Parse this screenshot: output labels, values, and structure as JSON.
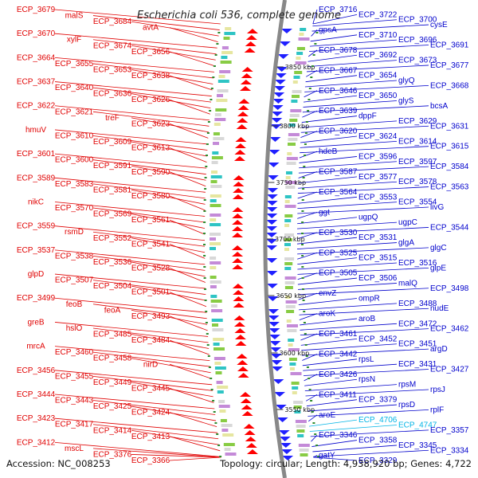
{
  "title": "Escherichia coli 536, complete genome",
  "accession": "Accession: NC_008253",
  "topology": "Topology: circular; Length: 4,938,920 bp; Genes: 4,722",
  "colors": {
    "left": "#e00000",
    "right": "#0000cc",
    "rna": "#00b4e6",
    "backbone": "#888888",
    "tick": "#2e8b2e"
  },
  "ticks": [
    "3850 kbp",
    "3800 kbp",
    "3750 kbp",
    "3700 kbp",
    "3650 kbp",
    "3600 kbp",
    "3550 kbp"
  ],
  "left_labels": [
    "ECP_3679",
    "malS",
    "ECP_3684",
    "avtA",
    "ECP_3670",
    "xylF",
    "ECP_3674",
    "ECP_3656",
    "ECP_3664",
    "ECP_3655",
    "ECP_3653",
    "ECP_3638",
    "ECP_3637",
    "ECP_3640",
    "ECP_3636",
    "ECP_3626",
    "ECP_3622",
    "ECP_3621",
    "treF",
    "ECP_3623",
    "hmuV",
    "ECP_3610",
    "ECP_3609",
    "ECP_3613",
    "ECP_3601",
    "ECP_3600",
    "ECP_3591",
    "ECP_3590",
    "ECP_3589",
    "ECP_3583",
    "ECP_3581",
    "ECP_3580",
    "nikC",
    "ECP_3570",
    "ECP_3569",
    "ECP_3561",
    "ECP_3559",
    "rsmD",
    "ECP_3552",
    "ECP_3541",
    "ECP_3537",
    "ECP_3538",
    "ECP_3536",
    "ECP_3528",
    "glpD",
    "ECP_3507",
    "ECP_3504",
    "ECP_3501",
    "ECP_3499",
    "feoB",
    "feoA",
    "ECP_3493",
    "greB",
    "hslO",
    "ECP_3485",
    "ECP_3484",
    "mrcA",
    "ECP_3460",
    "ECP_3458",
    "nirD",
    "ECP_3456",
    "ECP_3455",
    "ECP_3449",
    "ECP_3445",
    "ECP_3444",
    "ECP_3443",
    "ECP_3425",
    "ECP_3424",
    "ECP_3423",
    "ECP_3417",
    "ECP_3414",
    "ECP_3413",
    "ECP_3412",
    "mscL",
    "ECP_3376",
    "ECP_3366"
  ],
  "right_labels": [
    "ECP_3716",
    "ECP_3722",
    "ECP_3700",
    "cysE",
    "gpsA",
    "ECP_3710",
    "ECP_3696",
    "ECP_3691",
    "ECP_3678",
    "ECP_3692",
    "ECP_3673",
    "ECP_3677",
    "ECP_3667",
    "ECP_3654",
    "glyQ",
    "ECP_3668",
    "ECP_3646",
    "ECP_3650",
    "glyS",
    "bcsA",
    "ECP_3639",
    "dppF",
    "ECP_3629",
    "ECP_3631",
    "ECP_3620",
    "ECP_3624",
    "ECP_3614",
    "ECP_3615",
    "hdeB",
    "ECP_3596",
    "ECP_3597",
    "ECP_3584",
    "ECP_3587",
    "ECP_3577",
    "ECP_3578",
    "ECP_3563",
    "ECP_3564",
    "ECP_3553",
    "ECP_3554",
    "livG",
    "ggt",
    "ugpQ",
    "ugpC",
    "ECP_3544",
    "ECP_3530",
    "ECP_3531",
    "glgA",
    "glgC",
    "ECP_3525",
    "ECP_3515",
    "ECP_3516",
    "glpE",
    "ECP_3505",
    "ECP_3506",
    "malQ",
    "ECP_3498",
    "envZ",
    "ompR",
    "ECP_3488",
    "nudE",
    "aroK",
    "aroB",
    "ECP_3472",
    "ECP_3462",
    "ECP_3461",
    "ECP_3452",
    "ECP_3451",
    "argD",
    "ECP_3442",
    "rpsL",
    "ECP_3431",
    "ECP_3427",
    "ECP_3426",
    "rpsN",
    "rpsM",
    "rpsJ",
    "ECP_3411",
    "ECP_3379",
    "rpsD",
    "rplF",
    "aroE",
    "ECP_4706",
    "ECP_4747",
    "ECP_3357",
    "ECP_3346",
    "ECP_3358",
    "ECP_3345",
    "ECP_3334",
    "gatY",
    "ECP_3329"
  ],
  "rna_labels": [
    "ECP_4706",
    "ECP_4747"
  ]
}
